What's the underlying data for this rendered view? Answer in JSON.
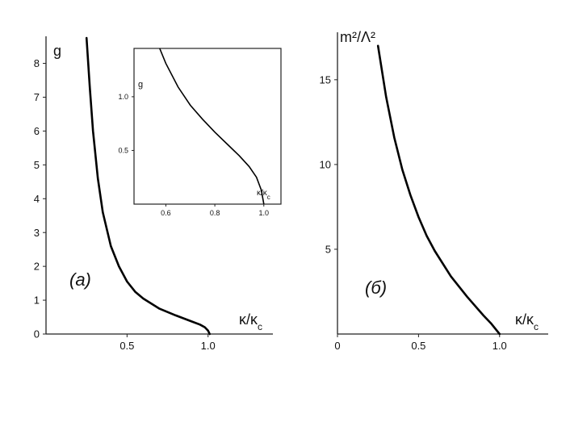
{
  "chart_data": [
    {
      "type": "line",
      "panel_label": "(a)",
      "ylabel": "g",
      "xlabel": "κ/κ",
      "xlabel_sub": "c",
      "xlim": [
        0.0,
        1.4
      ],
      "ylim": [
        0,
        8.8
      ],
      "x_ticks": [
        "0.5",
        "1.0"
      ],
      "y_ticks": [
        "0",
        "1",
        "2",
        "3",
        "4",
        "5",
        "6",
        "7",
        "8"
      ],
      "series": [
        {
          "x": [
            0.25,
            0.27,
            0.29,
            0.32,
            0.35,
            0.4,
            0.45,
            0.5,
            0.55,
            0.6,
            0.7,
            0.8,
            0.9,
            0.95,
            0.98,
            1.0,
            1.01
          ],
          "y": [
            8.75,
            7.3,
            6.0,
            4.6,
            3.6,
            2.6,
            2.0,
            1.55,
            1.25,
            1.05,
            0.75,
            0.55,
            0.37,
            0.28,
            0.2,
            0.1,
            0.0
          ]
        }
      ],
      "inset": {
        "ylabel": "g",
        "xlabel": "κ/κ",
        "xlabel_sub": "c",
        "xlim": [
          0.47,
          1.07
        ],
        "ylim": [
          0.0,
          1.45
        ],
        "x_ticks": [
          "0.6",
          "0.8",
          "1.0"
        ],
        "y_ticks": [
          "0.5",
          "1.0"
        ],
        "series": [
          {
            "x": [
              0.575,
              0.6,
              0.65,
              0.7,
              0.75,
              0.8,
              0.85,
              0.9,
              0.94,
              0.97,
              0.99,
              1.0
            ],
            "y": [
              1.45,
              1.31,
              1.09,
              0.92,
              0.79,
              0.67,
              0.56,
              0.45,
              0.35,
              0.25,
              0.13,
              0.0
            ]
          }
        ]
      }
    },
    {
      "type": "line",
      "panel_label": "(б)",
      "ylabel": "m²/Λ²",
      "xlabel": "κ/κ",
      "xlabel_sub": "c",
      "xlim": [
        0.0,
        1.3
      ],
      "ylim": [
        0,
        17.8
      ],
      "x_ticks": [
        "0",
        "0.5",
        "1.0"
      ],
      "y_ticks": [
        "5",
        "10",
        "15"
      ],
      "series": [
        {
          "x": [
            0.25,
            0.3,
            0.35,
            0.4,
            0.45,
            0.5,
            0.55,
            0.6,
            0.7,
            0.8,
            0.9,
            0.95,
            1.0
          ],
          "y": [
            17.0,
            14.0,
            11.6,
            9.7,
            8.2,
            6.9,
            5.8,
            4.9,
            3.4,
            2.2,
            1.1,
            0.6,
            0.0
          ]
        }
      ]
    }
  ]
}
